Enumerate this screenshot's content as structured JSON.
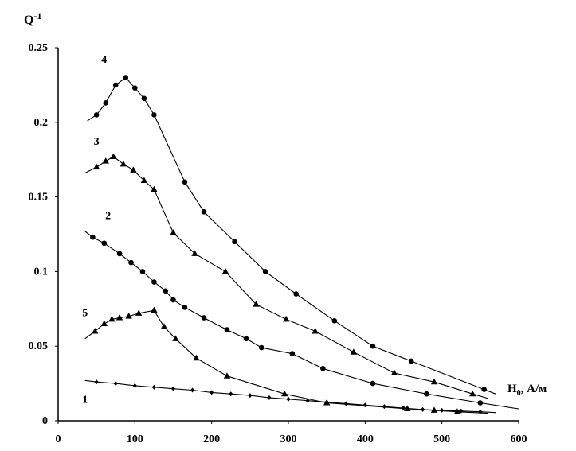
{
  "chart_data": {
    "type": "line",
    "ylabel_base": "Q",
    "ylabel_sup": "-1",
    "xlabel_main": "H",
    "xlabel_sub": "0",
    "xlabel_unit": ", А/м",
    "xlim": [
      0,
      600
    ],
    "ylim": [
      0,
      0.25
    ],
    "x_ticks": [
      0,
      100,
      200,
      300,
      400,
      500,
      600
    ],
    "x_tick_labels": [
      "0",
      "100",
      "200",
      "300",
      "400",
      "500",
      "600"
    ],
    "y_ticks": [
      0,
      0.05,
      0.1,
      0.15,
      0.2,
      0.25
    ],
    "y_tick_labels": [
      "0",
      "0.05",
      "0.1",
      "0.15",
      "0.2",
      "0.25"
    ],
    "grid": false,
    "series": [
      {
        "name": "1",
        "marker": "diamond",
        "label_at": [
          35,
          0.012
        ],
        "x": [
          35,
          50,
          75,
          100,
          125,
          150,
          175,
          200,
          225,
          250,
          275,
          300,
          325,
          350,
          375,
          400,
          425,
          450,
          475,
          500,
          525,
          550,
          570
        ],
        "y": [
          0.027,
          0.026,
          0.025,
          0.0235,
          0.0225,
          0.0215,
          0.0205,
          0.019,
          0.018,
          0.017,
          0.0155,
          0.0145,
          0.0135,
          0.0125,
          0.0115,
          0.0105,
          0.0095,
          0.0085,
          0.0075,
          0.007,
          0.0065,
          0.006,
          0.0055
        ]
      },
      {
        "name": "2",
        "marker": "circle",
        "label_at": [
          65,
          0.135
        ],
        "x": [
          35,
          45,
          60,
          80,
          95,
          110,
          125,
          140,
          150,
          165,
          190,
          220,
          245,
          265,
          305,
          345,
          410,
          480,
          550,
          600
        ],
        "y": [
          0.127,
          0.123,
          0.119,
          0.112,
          0.106,
          0.1,
          0.093,
          0.087,
          0.081,
          0.076,
          0.069,
          0.061,
          0.055,
          0.049,
          0.045,
          0.035,
          0.025,
          0.018,
          0.012,
          0.008
        ]
      },
      {
        "name": "3",
        "marker": "triangle",
        "label_at": [
          50,
          0.185
        ],
        "x": [
          35,
          50,
          62,
          72,
          85,
          98,
          112,
          125,
          150,
          178,
          218,
          258,
          297,
          335,
          385,
          438,
          490,
          540,
          560
        ],
        "y": [
          0.166,
          0.17,
          0.174,
          0.177,
          0.172,
          0.168,
          0.161,
          0.155,
          0.126,
          0.112,
          0.1,
          0.078,
          0.068,
          0.06,
          0.046,
          0.032,
          0.026,
          0.018,
          0.015
        ]
      },
      {
        "name": "4",
        "marker": "circle",
        "label_at": [
          60,
          0.24
        ],
        "x": [
          38,
          50,
          62,
          75,
          88,
          100,
          112,
          125,
          165,
          190,
          230,
          270,
          310,
          360,
          410,
          460,
          555,
          570
        ],
        "y": [
          0.201,
          0.205,
          0.213,
          0.225,
          0.23,
          0.223,
          0.216,
          0.205,
          0.16,
          0.14,
          0.12,
          0.1,
          0.085,
          0.067,
          0.05,
          0.04,
          0.021,
          0.018
        ]
      },
      {
        "name": "5",
        "marker": "triangle",
        "label_at": [
          35,
          0.07
        ],
        "x": [
          35,
          48,
          60,
          70,
          80,
          92,
          105,
          125,
          138,
          153,
          180,
          220,
          295,
          350,
          455,
          490,
          520,
          560
        ],
        "y": [
          0.055,
          0.06,
          0.065,
          0.068,
          0.069,
          0.07,
          0.072,
          0.074,
          0.063,
          0.055,
          0.042,
          0.03,
          0.018,
          0.012,
          0.008,
          0.007,
          0.006,
          0.005
        ]
      }
    ]
  }
}
